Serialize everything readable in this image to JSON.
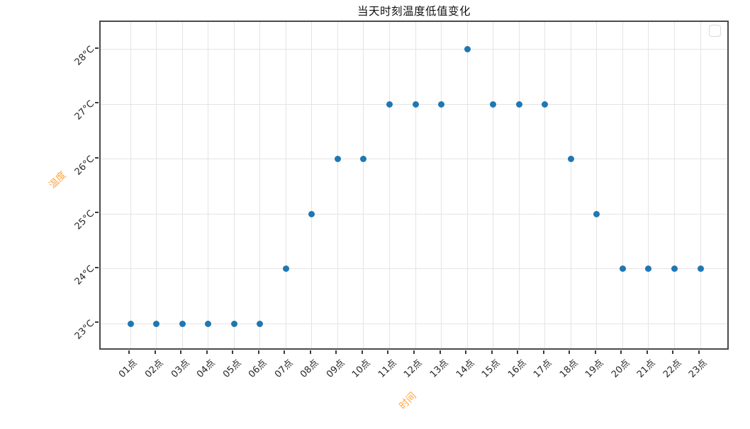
{
  "chart_data": {
    "type": "scatter",
    "title": "当天时刻温度低值变化",
    "xlabel": "时间",
    "ylabel": "温度",
    "categories": [
      "01点",
      "02点",
      "03点",
      "04点",
      "05点",
      "06点",
      "07点",
      "08点",
      "09点",
      "10点",
      "11点",
      "12点",
      "13点",
      "14点",
      "15点",
      "16点",
      "17点",
      "18点",
      "19点",
      "20点",
      "21点",
      "22点",
      "23点"
    ],
    "series": [
      {
        "name": "",
        "values": [
          23,
          23,
          23,
          23,
          23,
          23,
          24,
          25,
          26,
          26,
          27,
          27,
          27,
          28,
          27,
          27,
          27,
          26,
          25,
          24,
          24,
          24,
          24
        ]
      }
    ],
    "yticks": [
      23,
      24,
      25,
      26,
      27,
      28
    ],
    "ytick_labels": [
      "23°C",
      "24°C",
      "25°C",
      "26°C",
      "27°C",
      "28°C"
    ],
    "ylim": [
      22.5,
      28.5
    ],
    "grid": true,
    "tick_rotation_deg": 45,
    "legend": {
      "visible": true,
      "position": "top-right",
      "entries": []
    },
    "colors": {
      "point": "#1f77b4",
      "axis_label": "#FFA640",
      "grid": "#e4e4e4",
      "spine": "#4a4a4a",
      "tick_text": "#262626",
      "title_text": "#111111"
    }
  }
}
